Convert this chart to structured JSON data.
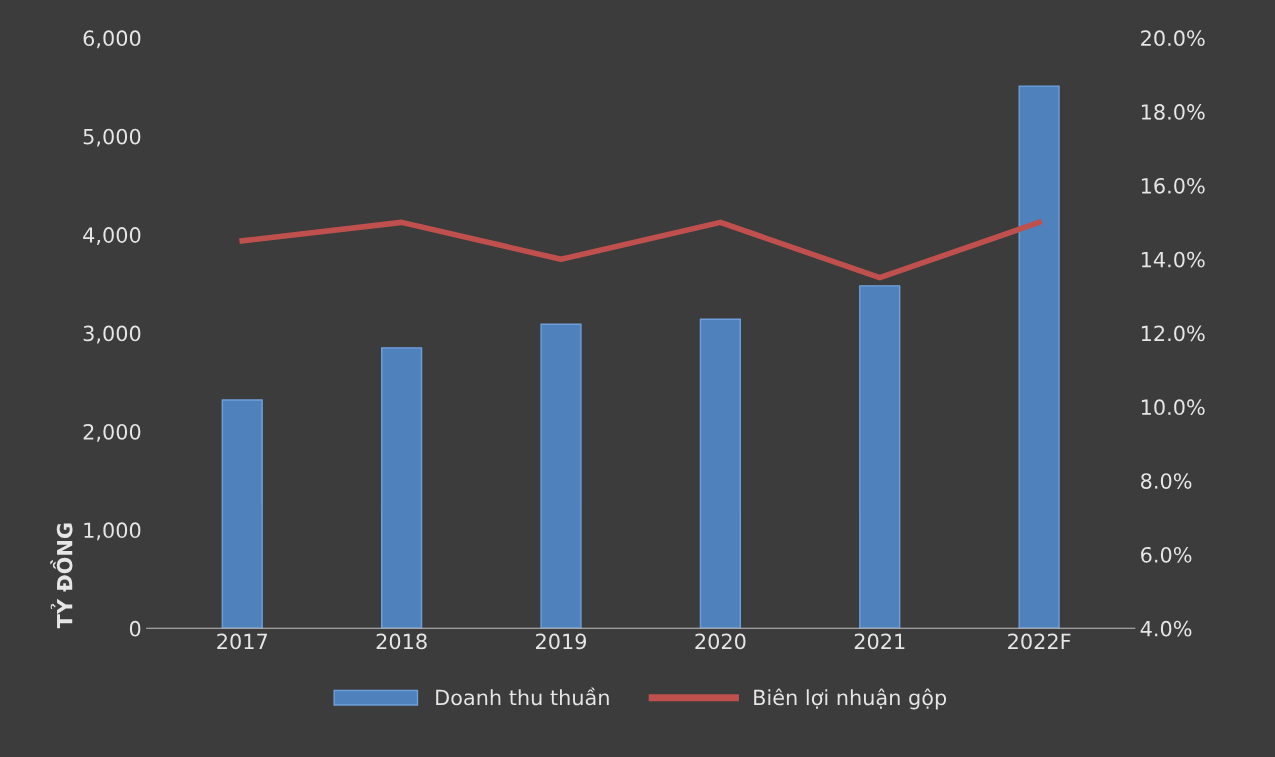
{
  "chart_data": {
    "type": "bar",
    "ylabel": "TỶ ĐỒNG",
    "categories": [
      "2017",
      "2018",
      "2019",
      "2020",
      "2021",
      "2022F"
    ],
    "series": [
      {
        "name": "Doanh thu thuần",
        "color": "#4f81bd",
        "values": [
          2320,
          2850,
          3090,
          3140,
          3480,
          5510
        ]
      },
      {
        "name": "Biên lợi nhuận gộp",
        "type": "line",
        "axis": "y2",
        "color": "#c0504d",
        "values": [
          14.5,
          15.0,
          14.0,
          15.0,
          13.5,
          15.0
        ]
      }
    ],
    "ylim": [
      0,
      6000
    ],
    "yticks": [
      0,
      {
        "value": 1000,
        "label": "1,000"
      },
      {
        "value": 2000,
        "label": "2,000"
      },
      {
        "value": 3000,
        "label": "3,000"
      },
      {
        "value": 4000,
        "label": "4,000"
      },
      {
        "value": 5000,
        "label": "5,000"
      },
      {
        "value": 6000,
        "label": "6,000"
      }
    ],
    "y2lim": [
      4,
      20
    ],
    "y2ticks": [
      {
        "value": 4,
        "label": "4.0%"
      },
      {
        "value": 6,
        "label": "6.0%"
      },
      {
        "value": 8,
        "label": "8.0%"
      },
      {
        "value": 10,
        "label": "10.0%"
      },
      {
        "value": 12,
        "label": "12.0%"
      },
      {
        "value": 14,
        "label": "14.0%"
      },
      {
        "value": 16,
        "label": "16.0%"
      },
      {
        "value": 18,
        "label": "18.0%"
      },
      {
        "value": 20,
        "label": "20.0%"
      }
    ],
    "grid": false,
    "legend": "bottom",
    "marker": "none",
    "line_style": "solid"
  }
}
